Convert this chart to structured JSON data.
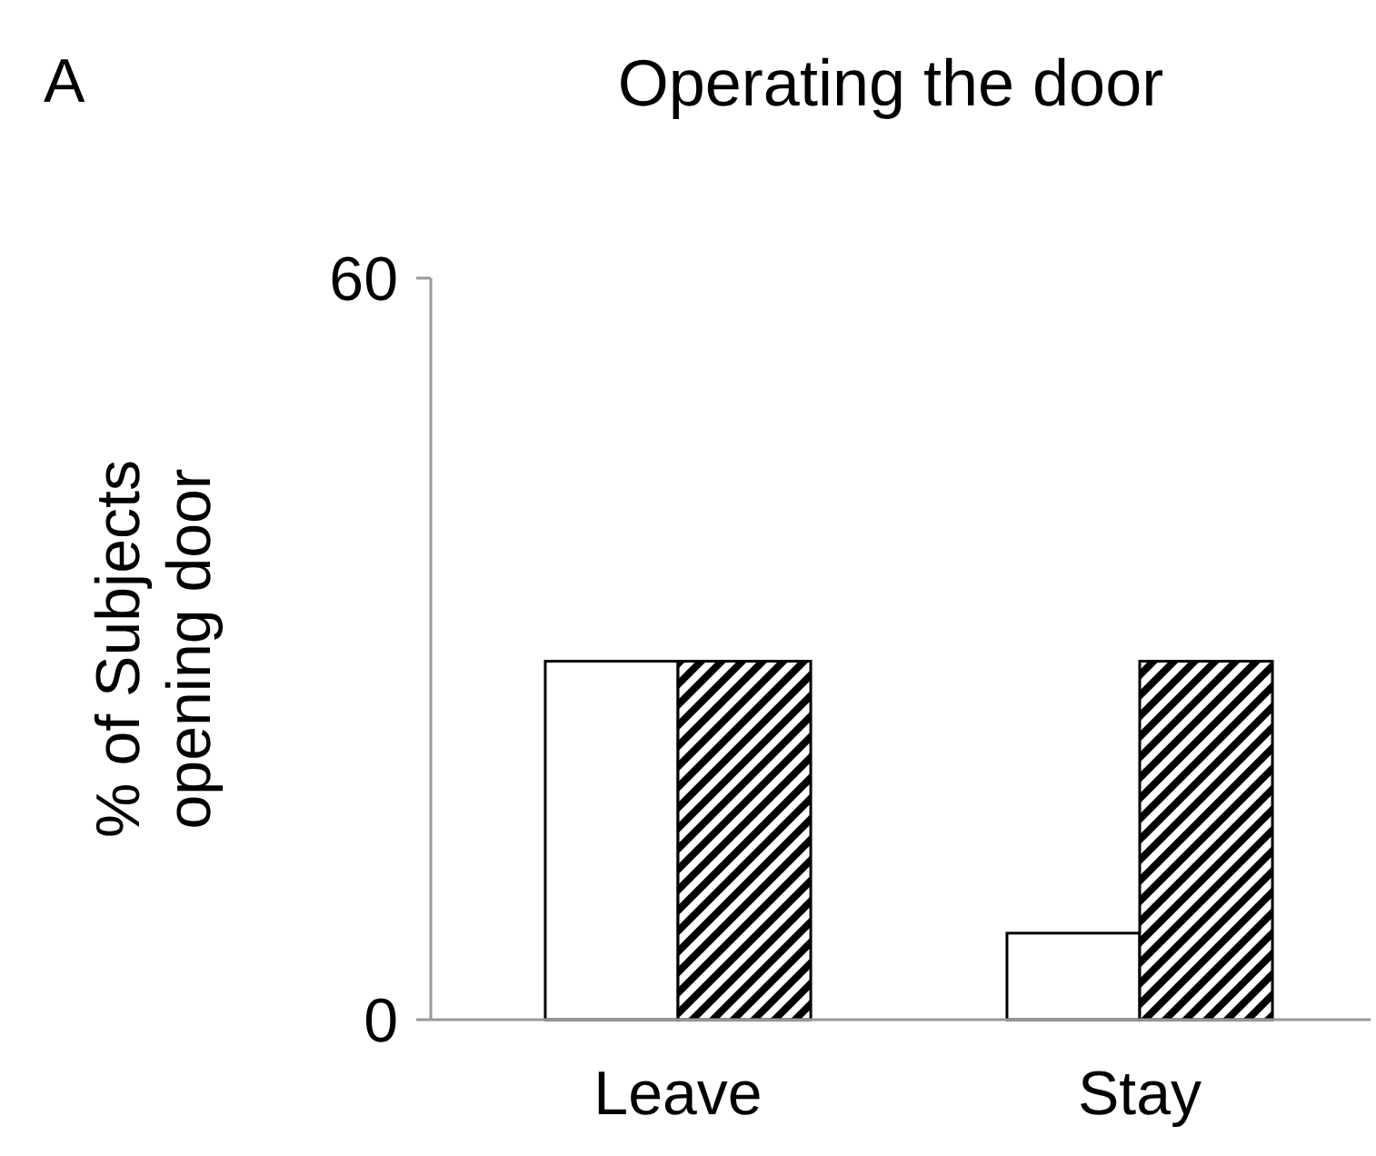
{
  "chart_data": {
    "type": "bar",
    "title": "Operating the door",
    "ylabel": "% of Subjects\nopening door",
    "annotations": [
      "A"
    ],
    "categories": [
      "Leave",
      "Stay"
    ],
    "series": [
      {
        "color": "#ffffff",
        "values": [
          29,
          7
        ]
      },
      {
        "color": "#000000",
        "values": [
          29,
          29
        ]
      }
    ],
    "ylim": [
      0,
      60
    ],
    "yticks": [
      0,
      60
    ]
  }
}
